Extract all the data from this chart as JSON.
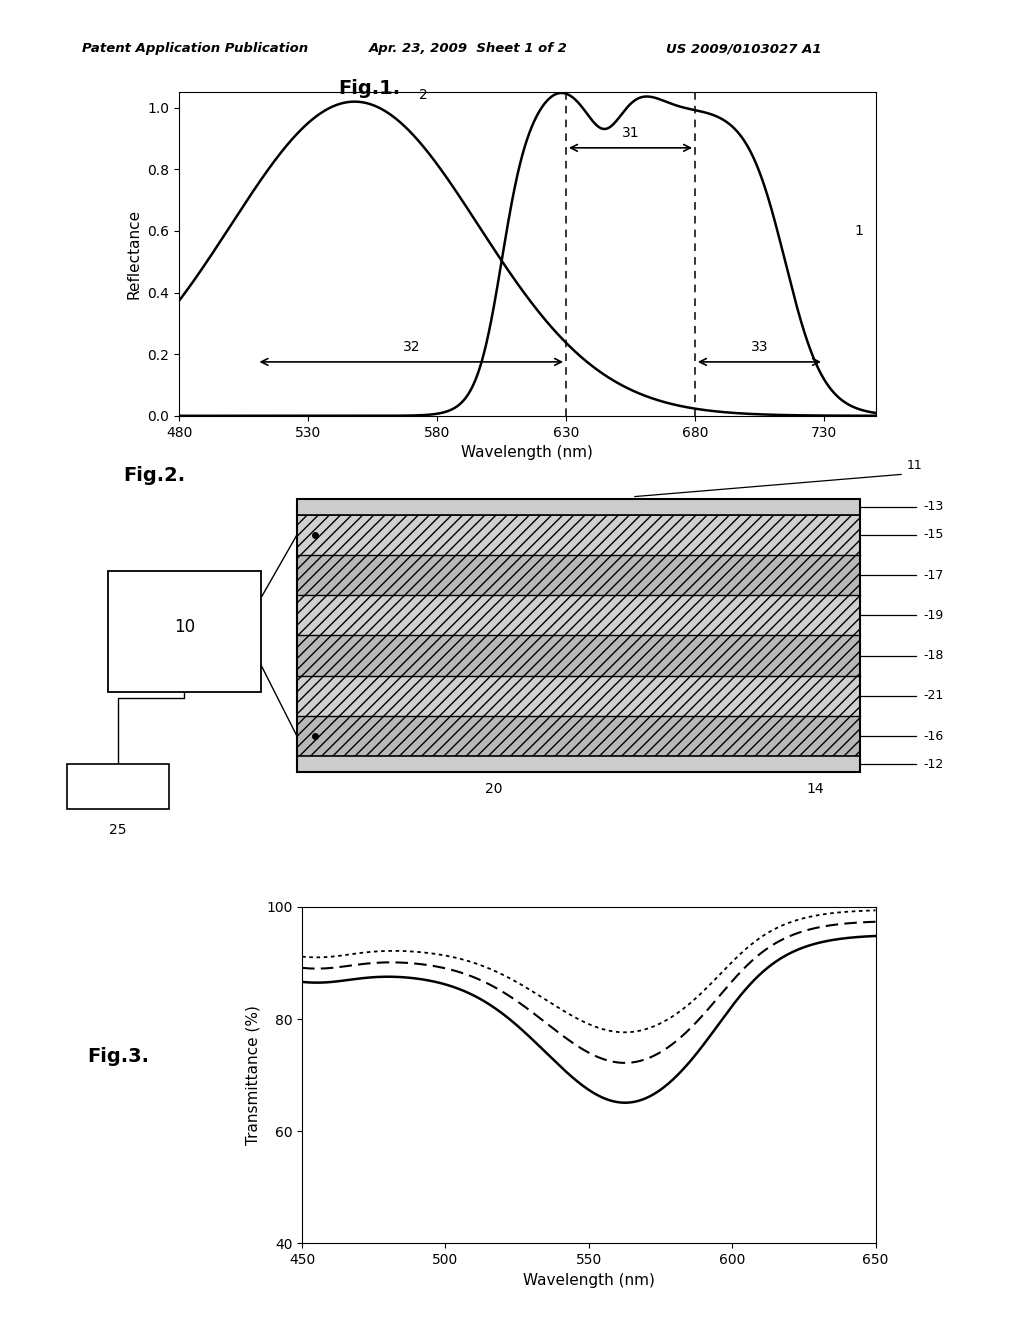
{
  "header_left": "Patent Application Publication",
  "header_mid": "Apr. 23, 2009  Sheet 1 of 2",
  "header_right": "US 2009/0103027 A1",
  "fig1_title": "Fig.1.",
  "fig1_xlabel": "Wavelength (nm)",
  "fig1_ylabel": "Reflectance",
  "fig1_xlim": [
    480,
    750
  ],
  "fig1_ylim": [
    0,
    1.05
  ],
  "fig1_xticks": [
    480,
    530,
    580,
    630,
    680,
    730
  ],
  "fig1_yticks": [
    0,
    0.2,
    0.4,
    0.6,
    0.8,
    1
  ],
  "fig2_title": "Fig.2.",
  "fig3_title": "Fig.3.",
  "fig3_xlabel": "Wavelength (nm)",
  "fig3_ylabel": "Transmittance (%)",
  "fig3_xlim": [
    450,
    650
  ],
  "fig3_ylim": [
    40,
    100
  ],
  "fig3_xticks": [
    450,
    500,
    550,
    600,
    650
  ],
  "fig3_yticks": [
    40,
    60,
    80,
    100
  ],
  "bg_color": "#ffffff",
  "line_color": "#000000"
}
